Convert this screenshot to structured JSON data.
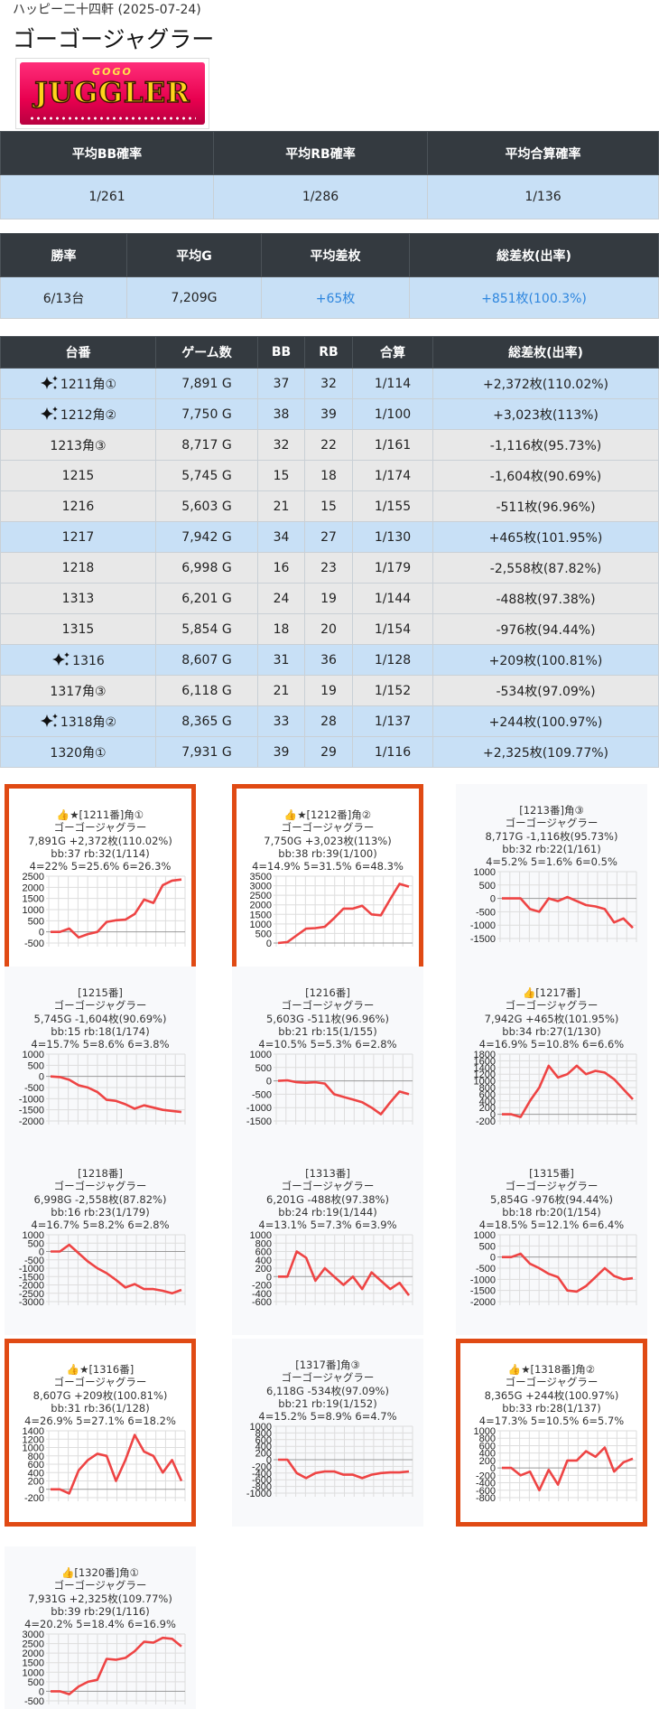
{
  "header": {
    "store": "ハッピー二十四軒 (2025-07-24)",
    "machine": "ゴーゴージャグラー"
  },
  "logo": {
    "small": "GOGO",
    "main": "JUGGLER"
  },
  "summary1": {
    "headers": [
      "平均BB確率",
      "平均RB確率",
      "平均合算確率"
    ],
    "values": [
      "1/261",
      "1/286",
      "1/136"
    ]
  },
  "summary2": {
    "headers": [
      "勝率",
      "平均G",
      "平均差枚",
      "総差枚(出率)"
    ],
    "values": [
      "6/13台",
      "7,209G",
      "+65枚",
      "+851枚(100.3%)"
    ]
  },
  "machines_table": {
    "headers": [
      "台番",
      "ゲーム数",
      "BB",
      "RB",
      "合算",
      "総差枚(出率)"
    ],
    "rows": [
      {
        "id": "1211角①",
        "games": "7,891 G",
        "bb": "37",
        "rb": "32",
        "total": "1/114",
        "diff": "+2,372枚(110.02%)",
        "style": "hi",
        "spark": true
      },
      {
        "id": "1212角②",
        "games": "7,750 G",
        "bb": "38",
        "rb": "39",
        "total": "1/100",
        "diff": "+3,023枚(113%)",
        "style": "hi",
        "spark": true
      },
      {
        "id": "1213角③",
        "games": "8,717 G",
        "bb": "32",
        "rb": "22",
        "total": "1/161",
        "diff": "-1,116枚(95.73%)",
        "style": "lo",
        "spark": false
      },
      {
        "id": "1215",
        "games": "5,745 G",
        "bb": "15",
        "rb": "18",
        "total": "1/174",
        "diff": "-1,604枚(90.69%)",
        "style": "lo",
        "spark": false
      },
      {
        "id": "1216",
        "games": "5,603 G",
        "bb": "21",
        "rb": "15",
        "total": "1/155",
        "diff": "-511枚(96.96%)",
        "style": "lo",
        "spark": false
      },
      {
        "id": "1217",
        "games": "7,942 G",
        "bb": "34",
        "rb": "27",
        "total": "1/130",
        "diff": "+465枚(101.95%)",
        "style": "hi",
        "spark": false
      },
      {
        "id": "1218",
        "games": "6,998 G",
        "bb": "16",
        "rb": "23",
        "total": "1/179",
        "diff": "-2,558枚(87.82%)",
        "style": "lo",
        "spark": false
      },
      {
        "id": "1313",
        "games": "6,201 G",
        "bb": "24",
        "rb": "19",
        "total": "1/144",
        "diff": "-488枚(97.38%)",
        "style": "lo",
        "spark": false
      },
      {
        "id": "1315",
        "games": "5,854 G",
        "bb": "18",
        "rb": "20",
        "total": "1/154",
        "diff": "-976枚(94.44%)",
        "style": "lo",
        "spark": false
      },
      {
        "id": "1316",
        "games": "8,607 G",
        "bb": "31",
        "rb": "36",
        "total": "1/128",
        "diff": "+209枚(100.81%)",
        "style": "hi",
        "spark": true
      },
      {
        "id": "1317角③",
        "games": "6,118 G",
        "bb": "21",
        "rb": "19",
        "total": "1/152",
        "diff": "-534枚(97.09%)",
        "style": "lo",
        "spark": false
      },
      {
        "id": "1318角②",
        "games": "8,365 G",
        "bb": "33",
        "rb": "28",
        "total": "1/137",
        "diff": "+244枚(100.97%)",
        "style": "hi",
        "spark": true
      },
      {
        "id": "1320角①",
        "games": "7,931 G",
        "bb": "39",
        "rb": "29",
        "total": "1/116",
        "diff": "+2,325枚(109.77%)",
        "style": "hi",
        "spark": false
      }
    ]
  },
  "cards": [
    {
      "title": "👍★[1211番]角①",
      "name": "ゴーゴージャグラー",
      "stats": "7,891G +2,372枚(110.02%)",
      "bbrb": "bb:37 rb:32(1/114)",
      "dist": "4=22% 5=25.6% 6=26.3%",
      "selected": true
    },
    {
      "title": "👍★[1212番]角②",
      "name": "ゴーゴージャグラー",
      "stats": "7,750G +3,023枚(113%)",
      "bbrb": "bb:38 rb:39(1/100)",
      "dist": "4=14.9% 5=31.5% 6=48.3%",
      "selected": true
    },
    {
      "title": "[1213番]角③",
      "name": "ゴーゴージャグラー",
      "stats": "8,717G -1,116枚(95.73%)",
      "bbrb": "bb:32 rb:22(1/161)",
      "dist": "4=5.2% 5=1.6% 6=0.5%",
      "selected": false
    },
    {
      "title": "[1215番]",
      "name": "ゴーゴージャグラー",
      "stats": "5,745G -1,604枚(90.69%)",
      "bbrb": "bb:15 rb:18(1/174)",
      "dist": "4=15.7% 5=8.6% 6=3.8%",
      "selected": false
    },
    {
      "title": "[1216番]",
      "name": "ゴーゴージャグラー",
      "stats": "5,603G -511枚(96.96%)",
      "bbrb": "bb:21 rb:15(1/155)",
      "dist": "4=10.5% 5=5.3% 6=2.8%",
      "selected": false
    },
    {
      "title": "👍[1217番]",
      "name": "ゴーゴージャグラー",
      "stats": "7,942G +465枚(101.95%)",
      "bbrb": "bb:34 rb:27(1/130)",
      "dist": "4=16.9% 5=10.8% 6=6.6%",
      "selected": false
    },
    {
      "title": "[1218番]",
      "name": "ゴーゴージャグラー",
      "stats": "6,998G -2,558枚(87.82%)",
      "bbrb": "bb:16 rb:23(1/179)",
      "dist": "4=16.7% 5=8.2% 6=2.8%",
      "selected": false
    },
    {
      "title": "[1313番]",
      "name": "ゴーゴージャグラー",
      "stats": "6,201G -488枚(97.38%)",
      "bbrb": "bb:24 rb:19(1/144)",
      "dist": "4=13.1% 5=7.3% 6=3.9%",
      "selected": false
    },
    {
      "title": "[1315番]",
      "name": "ゴーゴージャグラー",
      "stats": "5,854G -976枚(94.44%)",
      "bbrb": "bb:18 rb:20(1/154)",
      "dist": "4=18.5% 5=12.1% 6=6.4%",
      "selected": false
    },
    {
      "title": "👍★[1316番]",
      "name": "ゴーゴージャグラー",
      "stats": "8,607G +209枚(100.81%)",
      "bbrb": "bb:31 rb:36(1/128)",
      "dist": "4=26.9% 5=27.1% 6=18.2%",
      "selected": true
    },
    {
      "title": "[1317番]角③",
      "name": "ゴーゴージャグラー",
      "stats": "6,118G -534枚(97.09%)",
      "bbrb": "bb:21 rb:19(1/152)",
      "dist": "4=15.2% 5=8.9% 6=4.7%",
      "selected": false
    },
    {
      "title": "👍★[1318番]角②",
      "name": "ゴーゴージャグラー",
      "stats": "8,365G +244枚(100.97%)",
      "bbrb": "bb:33 rb:28(1/137)",
      "dist": "4=17.3% 5=10.5% 6=5.7%",
      "selected": true
    },
    {
      "title": "👍[1320番]角①",
      "name": "ゴーゴージャグラー",
      "stats": "7,931G +2,325枚(109.77%)",
      "bbrb": "bb:39 rb:29(1/116)",
      "dist": "4=20.2% 5=18.4% 6=16.9%",
      "selected": false
    }
  ],
  "chart_data": [
    {
      "type": "line",
      "ticks": [
        "2500",
        "2000",
        "1500",
        "1000",
        "500",
        "0",
        "-500"
      ],
      "ylim": [
        -500,
        2500
      ],
      "values": [
        0,
        0,
        150,
        -250,
        -100,
        0,
        450,
        520,
        550,
        800,
        1450,
        1300,
        2100,
        2300,
        2350
      ]
    },
    {
      "type": "line",
      "ticks": [
        "3500",
        "3000",
        "2500",
        "2000",
        "1500",
        "1000",
        "500",
        "0"
      ],
      "ylim": [
        0,
        3500
      ],
      "values": [
        0,
        50,
        400,
        750,
        780,
        850,
        1300,
        1800,
        1800,
        1950,
        1500,
        1450,
        2300,
        3100,
        2950
      ]
    },
    {
      "type": "line",
      "ticks": [
        "1000",
        "500",
        "0",
        "-500",
        "-1000",
        "-1500"
      ],
      "ylim": [
        -1500,
        1000
      ],
      "values": [
        0,
        0,
        0,
        -400,
        -500,
        0,
        -100,
        50,
        -100,
        -250,
        -300,
        -400,
        -900,
        -750,
        -1100
      ]
    },
    {
      "type": "line",
      "ticks": [
        "1000",
        "500",
        "0",
        "-500",
        "-1000",
        "-1500",
        "-2000"
      ],
      "ylim": [
        -2000,
        1000
      ],
      "values": [
        0,
        -30,
        -150,
        -400,
        -500,
        -700,
        -1050,
        -1100,
        -1250,
        -1450,
        -1300,
        -1400,
        -1500,
        -1550,
        -1600
      ]
    },
    {
      "type": "line",
      "ticks": [
        "1000",
        "500",
        "0",
        "-500",
        "-1000",
        "-1500"
      ],
      "ylim": [
        -1500,
        1000
      ],
      "values": [
        0,
        20,
        -50,
        -70,
        -50,
        -100,
        -500,
        -600,
        -700,
        -800,
        -1000,
        -1250,
        -800,
        -400,
        -500
      ]
    },
    {
      "type": "line",
      "ticks": [
        "1800",
        "1600",
        "1400",
        "1200",
        "1000",
        "800",
        "600",
        "400",
        "200",
        "0",
        "-200"
      ],
      "ylim": [
        -200,
        1800
      ],
      "values": [
        0,
        0,
        -80,
        400,
        800,
        1450,
        1100,
        1200,
        1450,
        1200,
        1300,
        1250,
        1050,
        750,
        450
      ]
    },
    {
      "type": "line",
      "ticks": [
        "1000",
        "500",
        "0",
        "-500",
        "-1000",
        "-1500",
        "-2000",
        "-2500",
        "-3000"
      ],
      "ylim": [
        -3000,
        1000
      ],
      "values": [
        0,
        0,
        400,
        -100,
        -600,
        -1000,
        -1300,
        -1700,
        -2150,
        -1950,
        -2250,
        -2250,
        -2350,
        -2500,
        -2300
      ]
    },
    {
      "type": "line",
      "ticks": [
        "1000",
        "800",
        "600",
        "400",
        "200",
        "0",
        "-200",
        "-400",
        "-600"
      ],
      "ylim": [
        -600,
        1000
      ],
      "values": [
        0,
        0,
        600,
        450,
        -100,
        200,
        0,
        -200,
        0,
        -300,
        100,
        -100,
        -300,
        -150,
        -450
      ]
    },
    {
      "type": "line",
      "ticks": [
        "1000",
        "500",
        "0",
        "-500",
        "-1000",
        "-1500",
        "-2000"
      ],
      "ylim": [
        -2000,
        1000
      ],
      "values": [
        0,
        0,
        150,
        -300,
        -500,
        -750,
        -900,
        -1500,
        -1550,
        -1300,
        -900,
        -500,
        -850,
        -1000,
        -950
      ]
    },
    {
      "type": "line",
      "ticks": [
        "1400",
        "1200",
        "1000",
        "800",
        "600",
        "400",
        "200",
        "0",
        "-200"
      ],
      "ylim": [
        -200,
        1400
      ],
      "values": [
        0,
        0,
        -100,
        450,
        700,
        850,
        800,
        200,
        700,
        1300,
        900,
        800,
        400,
        700,
        200
      ]
    },
    {
      "type": "line",
      "ticks": [
        "1000",
        "800",
        "600",
        "400",
        "200",
        "0",
        "-200",
        "-400",
        "-600",
        "-800",
        "-1000"
      ],
      "ylim": [
        -1000,
        1000
      ],
      "values": [
        0,
        0,
        -400,
        -550,
        -400,
        -350,
        -350,
        -450,
        -450,
        -550,
        -450,
        -400,
        -380,
        -380,
        -350
      ]
    },
    {
      "type": "line",
      "ticks": [
        "1000",
        "800",
        "600",
        "400",
        "200",
        "0",
        "-200",
        "-400",
        "-600",
        "-800"
      ],
      "ylim": [
        -800,
        1000
      ],
      "values": [
        0,
        0,
        -200,
        -100,
        -600,
        -50,
        -450,
        200,
        200,
        450,
        300,
        550,
        -100,
        150,
        250
      ]
    },
    {
      "type": "line",
      "ticks": [
        "3000",
        "2500",
        "2000",
        "1500",
        "1000",
        "500",
        "0",
        "-500"
      ],
      "ylim": [
        -500,
        3000
      ],
      "values": [
        0,
        0,
        -150,
        250,
        500,
        600,
        1700,
        1650,
        1750,
        2100,
        2600,
        2550,
        2800,
        2750,
        2350
      ]
    }
  ]
}
